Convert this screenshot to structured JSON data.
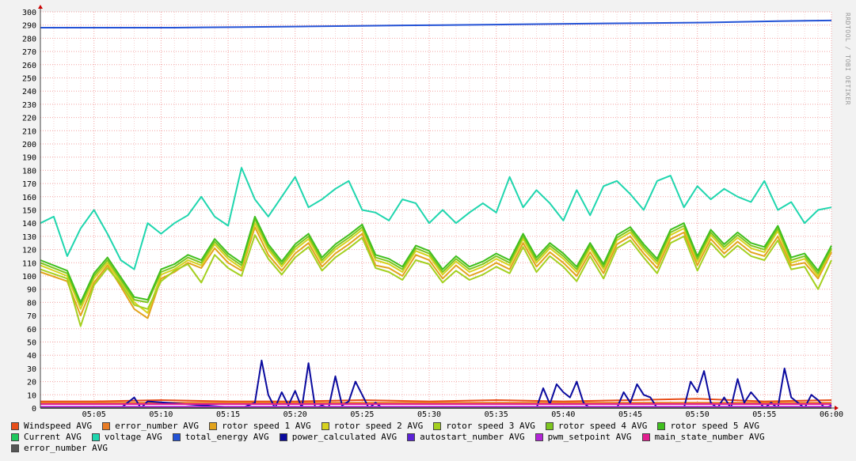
{
  "chart_data": {
    "type": "line",
    "ylim": [
      0,
      300
    ],
    "y_ticks": [
      0,
      10,
      20,
      30,
      40,
      50,
      60,
      70,
      80,
      90,
      100,
      110,
      120,
      130,
      140,
      150,
      160,
      170,
      180,
      190,
      200,
      210,
      220,
      230,
      240,
      250,
      260,
      270,
      280,
      290,
      300
    ],
    "x_range_minutes": [
      1,
      60
    ],
    "x_ticks": [
      "05:05",
      "05:10",
      "05:15",
      "05:20",
      "05:25",
      "05:30",
      "05:35",
      "05:40",
      "05:45",
      "05:50",
      "05:55",
      "06:00"
    ],
    "x_tick_minutes": [
      5,
      10,
      15,
      20,
      25,
      30,
      35,
      40,
      45,
      50,
      55,
      60
    ],
    "grid": true,
    "watermark": "RRDTOOL / TOBI OETIKER",
    "series": [
      {
        "name": "Windspeed AVG",
        "color": "#e84e19",
        "x": [
          1,
          5,
          10,
          15,
          20,
          25,
          30,
          35,
          40,
          45,
          50,
          55,
          60
        ],
        "values": [
          5,
          5,
          6,
          5,
          5,
          6,
          5,
          6,
          5,
          6,
          7,
          5,
          6
        ]
      },
      {
        "name": "error_number AVG",
        "color": "#e87b24",
        "x": [
          1,
          60
        ],
        "values": [
          4,
          4
        ]
      },
      {
        "name": "rotor speed 1 AVG",
        "color": "#e2a31c",
        "x": [
          1,
          3,
          4,
          5,
          6,
          7,
          8,
          9,
          10,
          11,
          12,
          13,
          14,
          15,
          16,
          17,
          18,
          19,
          20,
          21,
          22,
          23,
          24,
          25,
          26,
          27,
          28,
          29,
          30,
          31,
          32,
          33,
          34,
          35,
          36,
          37,
          38,
          39,
          40,
          41,
          42,
          43,
          44,
          45,
          46,
          47,
          48,
          49,
          50,
          51,
          52,
          53,
          54,
          55,
          56,
          57,
          58,
          59,
          60
        ],
        "values": [
          103,
          96,
          70,
          95,
          108,
          92,
          75,
          68,
          98,
          103,
          110,
          106,
          121,
          110,
          104,
          137,
          116,
          104,
          117,
          125,
          107,
          117,
          124,
          132,
          108,
          106,
          100,
          116,
          112,
          98,
          108,
          100,
          104,
          110,
          105,
          125,
          107,
          118,
          110,
          100,
          118,
          102,
          124,
          130,
          117,
          106,
          128,
          133,
          108,
          128,
          117,
          126,
          118,
          115,
          130,
          108,
          110,
          98,
          118
        ]
      },
      {
        "name": "rotor speed 2 AVG",
        "color": "#d6d21e",
        "x": [
          1,
          3,
          4,
          5,
          6,
          7,
          8,
          9,
          10,
          11,
          12,
          13,
          14,
          15,
          16,
          17,
          18,
          19,
          20,
          21,
          22,
          23,
          24,
          25,
          26,
          27,
          28,
          29,
          30,
          31,
          32,
          33,
          34,
          35,
          36,
          37,
          38,
          39,
          40,
          41,
          42,
          43,
          44,
          45,
          46,
          47,
          48,
          49,
          50,
          51,
          52,
          53,
          54,
          55,
          56,
          57,
          58,
          59,
          60
        ],
        "values": [
          108,
          100,
          75,
          98,
          110,
          95,
          80,
          72,
          101,
          105,
          112,
          108,
          124,
          113,
          106,
          140,
          120,
          107,
          120,
          128,
          110,
          120,
          127,
          135,
          112,
          109,
          103,
          119,
          115,
          101,
          111,
          103,
          107,
          113,
          108,
          128,
          110,
          121,
          113,
          103,
          121,
          105,
          127,
          133,
          120,
          109,
          131,
          136,
          111,
          131,
          120,
          129,
          121,
          118,
          134,
          110,
          113,
          100,
          120
        ]
      },
      {
        "name": "rotor speed 3 AVG",
        "color": "#a4d01f",
        "x": [
          1,
          3,
          4,
          5,
          6,
          7,
          8,
          9,
          10,
          11,
          12,
          13,
          14,
          15,
          16,
          17,
          18,
          19,
          20,
          21,
          22,
          23,
          24,
          25,
          26,
          27,
          28,
          29,
          30,
          31,
          32,
          33,
          34,
          35,
          36,
          37,
          38,
          39,
          40,
          41,
          42,
          43,
          44,
          45,
          46,
          47,
          48,
          49,
          50,
          51,
          52,
          53,
          54,
          55,
          56,
          57,
          58,
          59,
          60
        ],
        "values": [
          105,
          98,
          62,
          93,
          106,
          94,
          78,
          75,
          96,
          104,
          109,
          95,
          116,
          106,
          100,
          131,
          113,
          101,
          114,
          122,
          104,
          114,
          121,
          129,
          106,
          103,
          97,
          112,
          109,
          95,
          104,
          97,
          101,
          107,
          102,
          122,
          103,
          115,
          107,
          96,
          115,
          98,
          121,
          127,
          114,
          102,
          125,
          130,
          104,
          125,
          114,
          123,
          115,
          112,
          127,
          105,
          107,
          90,
          112
        ]
      },
      {
        "name": "rotor speed 4 AVG",
        "color": "#7dc61f",
        "x": [
          1,
          3,
          4,
          5,
          6,
          7,
          8,
          9,
          10,
          11,
          12,
          13,
          14,
          15,
          16,
          17,
          18,
          19,
          20,
          21,
          22,
          23,
          24,
          25,
          26,
          27,
          28,
          29,
          30,
          31,
          32,
          33,
          34,
          35,
          36,
          37,
          38,
          39,
          40,
          41,
          42,
          43,
          44,
          45,
          46,
          47,
          48,
          49,
          50,
          51,
          52,
          53,
          54,
          55,
          56,
          57,
          58,
          59,
          60
        ],
        "values": [
          110,
          102,
          78,
          100,
          112,
          97,
          82,
          80,
          103,
          107,
          114,
          110,
          126,
          115,
          108,
          143,
          122,
          109,
          122,
          130,
          112,
          122,
          129,
          137,
          114,
          111,
          105,
          121,
          117,
          103,
          113,
          105,
          109,
          115,
          110,
          130,
          112,
          123,
          115,
          105,
          123,
          107,
          129,
          135,
          122,
          111,
          133,
          138,
          113,
          133,
          122,
          131,
          123,
          120,
          136,
          112,
          115,
          102,
          121
        ]
      },
      {
        "name": "rotor speed 5 AVG",
        "color": "#3fbf1e",
        "x": [
          1,
          3,
          4,
          5,
          6,
          7,
          8,
          9,
          10,
          11,
          12,
          13,
          14,
          15,
          16,
          17,
          18,
          19,
          20,
          21,
          22,
          23,
          24,
          25,
          26,
          27,
          28,
          29,
          30,
          31,
          32,
          33,
          34,
          35,
          36,
          37,
          38,
          39,
          40,
          41,
          42,
          43,
          44,
          45,
          46,
          47,
          48,
          49,
          50,
          51,
          52,
          53,
          54,
          55,
          56,
          57,
          58,
          59,
          60
        ],
        "values": [
          112,
          104,
          80,
          102,
          114,
          99,
          84,
          82,
          105,
          109,
          116,
          112,
          128,
          117,
          110,
          145,
          124,
          111,
          124,
          132,
          114,
          124,
          131,
          139,
          116,
          113,
          107,
          123,
          119,
          105,
          115,
          107,
          111,
          117,
          112,
          132,
          114,
          125,
          117,
          107,
          125,
          109,
          131,
          137,
          124,
          113,
          135,
          140,
          115,
          135,
          124,
          133,
          125,
          122,
          138,
          114,
          117,
          104,
          123
        ]
      },
      {
        "name": "Current AVG",
        "color": "#1fc75c",
        "x": [
          1,
          60
        ],
        "values": [
          0,
          0
        ]
      },
      {
        "name": "voltage AVG",
        "color": "#1fd6ae",
        "x": [
          1,
          2,
          3,
          4,
          5,
          6,
          7,
          8,
          9,
          10,
          11,
          12,
          13,
          14,
          15,
          16,
          17,
          18,
          19,
          20,
          21,
          22,
          23,
          24,
          25,
          26,
          27,
          28,
          29,
          30,
          31,
          32,
          33,
          34,
          35,
          36,
          37,
          38,
          39,
          40,
          41,
          42,
          43,
          44,
          45,
          46,
          47,
          48,
          49,
          50,
          51,
          52,
          53,
          54,
          55,
          56,
          57,
          58,
          59,
          60
        ],
        "values": [
          140,
          145,
          115,
          136,
          150,
          132,
          112,
          105,
          140,
          132,
          140,
          146,
          160,
          145,
          138,
          182,
          158,
          145,
          160,
          175,
          152,
          158,
          166,
          172,
          150,
          148,
          142,
          158,
          155,
          140,
          150,
          140,
          148,
          155,
          148,
          175,
          152,
          165,
          155,
          142,
          165,
          146,
          168,
          172,
          162,
          150,
          172,
          176,
          152,
          168,
          158,
          166,
          160,
          156,
          172,
          150,
          156,
          140,
          150,
          152
        ]
      },
      {
        "name": "total_energy AVG",
        "color": "#2453d6",
        "x": [
          1,
          11,
          16,
          21,
          26,
          31,
          36,
          41,
          46,
          51,
          56,
          60
        ],
        "values": [
          288,
          288,
          288.5,
          289,
          289.5,
          290,
          290.5,
          291,
          291.5,
          292,
          293,
          293.5
        ]
      },
      {
        "name": "power_calculated AVG",
        "color": "#0a0a9e",
        "x": [
          1,
          7,
          8,
          8.5,
          9,
          16,
          17,
          17.5,
          18,
          18.5,
          19,
          19.5,
          20,
          20.5,
          21,
          21.5,
          22,
          22.5,
          23,
          23.5,
          24,
          24.5,
          25,
          25.5,
          26,
          26.5,
          27,
          38,
          38.5,
          39,
          39.5,
          40,
          40.5,
          41,
          41.5,
          42,
          44,
          44.5,
          45,
          45.5,
          46,
          46.5,
          47,
          49,
          49.5,
          50,
          50.5,
          51,
          51.5,
          52,
          52.5,
          53,
          53.5,
          54,
          54.5,
          55,
          55.5,
          56,
          56.5,
          57,
          58,
          58.5,
          59,
          59.5,
          60
        ],
        "values": [
          0,
          0,
          8,
          0,
          5,
          0,
          4,
          36,
          10,
          0,
          12,
          2,
          13,
          0,
          34,
          0,
          2,
          0,
          24,
          2,
          5,
          20,
          10,
          0,
          4,
          0,
          0,
          0,
          15,
          3,
          18,
          12,
          8,
          20,
          4,
          0,
          0,
          12,
          4,
          18,
          10,
          8,
          0,
          0,
          20,
          12,
          28,
          4,
          0,
          8,
          0,
          22,
          4,
          12,
          6,
          0,
          4,
          0,
          30,
          8,
          0,
          10,
          6,
          0,
          2
        ]
      },
      {
        "name": "autostart_number AVG",
        "color": "#5b22d6",
        "x": [
          1,
          60
        ],
        "values": [
          0,
          0
        ]
      },
      {
        "name": "pwm_setpoint AVG",
        "color": "#b224d6",
        "x": [
          1,
          60
        ],
        "values": [
          1,
          1
        ]
      },
      {
        "name": "main_state_number AVG",
        "color": "#e21f8f",
        "x": [
          1,
          60
        ],
        "values": [
          3,
          3
        ]
      },
      {
        "name": "error_number AVG",
        "color": "#555555",
        "x": [
          1,
          60
        ],
        "values": [
          0,
          0
        ]
      }
    ]
  },
  "legend_rows": [
    [
      0,
      1,
      2,
      3,
      4,
      5,
      6
    ],
    [
      7,
      8,
      9,
      10,
      11,
      12,
      13
    ],
    [
      14
    ]
  ]
}
